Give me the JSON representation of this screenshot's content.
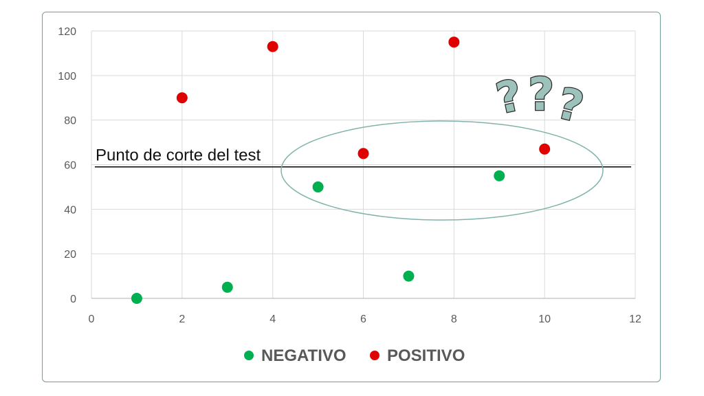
{
  "chart_data": {
    "type": "scatter",
    "xlim": [
      0,
      12
    ],
    "ylim": [
      0,
      120
    ],
    "x_ticks": [
      "0",
      "2",
      "4",
      "6",
      "8",
      "10",
      "12"
    ],
    "y_ticks": [
      "0",
      "20",
      "40",
      "60",
      "80",
      "100",
      "120"
    ],
    "grid": true,
    "legend_position": "bottom",
    "series": [
      {
        "name": "NEGATIVO",
        "color": "#00b050",
        "points": [
          {
            "x": 1,
            "y": 0
          },
          {
            "x": 3,
            "y": 5
          },
          {
            "x": 5,
            "y": 50
          },
          {
            "x": 7,
            "y": 10
          },
          {
            "x": 9,
            "y": 55
          }
        ]
      },
      {
        "name": "POSITIVO",
        "color": "#e00000",
        "points": [
          {
            "x": 2,
            "y": 90
          },
          {
            "x": 4,
            "y": 113
          },
          {
            "x": 6,
            "y": 65
          },
          {
            "x": 8,
            "y": 115
          },
          {
            "x": 10,
            "y": 67
          }
        ]
      }
    ],
    "cutoff": {
      "label": "Punto de corte del test",
      "y": 59
    },
    "annotation_icon": "question-marks-icon",
    "accent_color": "#7fb3ab"
  }
}
